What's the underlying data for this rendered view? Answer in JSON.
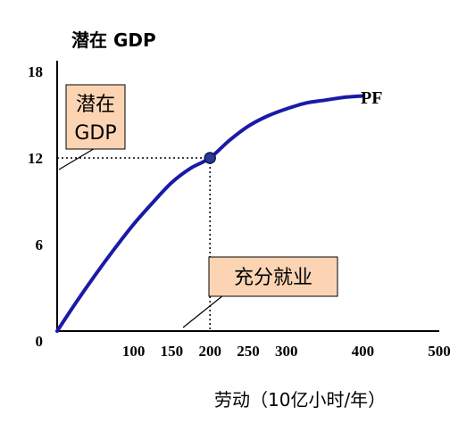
{
  "chart_data": {
    "type": "line",
    "ylabel": "潜在 GDP",
    "xlabel": "劳动（10亿小时/年）",
    "xlim": [
      0,
      500
    ],
    "ylim": [
      0,
      18
    ],
    "x_ticks": [
      100,
      150,
      200,
      250,
      300,
      400,
      500
    ],
    "y_ticks": [
      0,
      6,
      12,
      18
    ],
    "series": [
      {
        "name": "PF",
        "color": "#1a1aa8",
        "x": [
          0,
          25,
          50,
          75,
          100,
          125,
          150,
          175,
          200,
          225,
          250,
          275,
          300,
          325,
          350,
          375,
          400
        ],
        "values": [
          0,
          2.0,
          3.9,
          5.7,
          7.4,
          8.9,
          10.3,
          11.3,
          12.0,
          13.2,
          14.2,
          14.9,
          15.4,
          15.8,
          16.0,
          16.2,
          16.3
        ]
      }
    ],
    "highlight_point": {
      "x": 200,
      "y": 12
    },
    "annotations": {
      "potential_gdp": "潜在\nGDP",
      "full_employment": "充分就业"
    },
    "grid": false
  },
  "colors": {
    "curve": "#1a1aa8",
    "point_fill": "#2b3a8f",
    "callout_fill": "#fcd4b4",
    "axis": "#000000"
  }
}
